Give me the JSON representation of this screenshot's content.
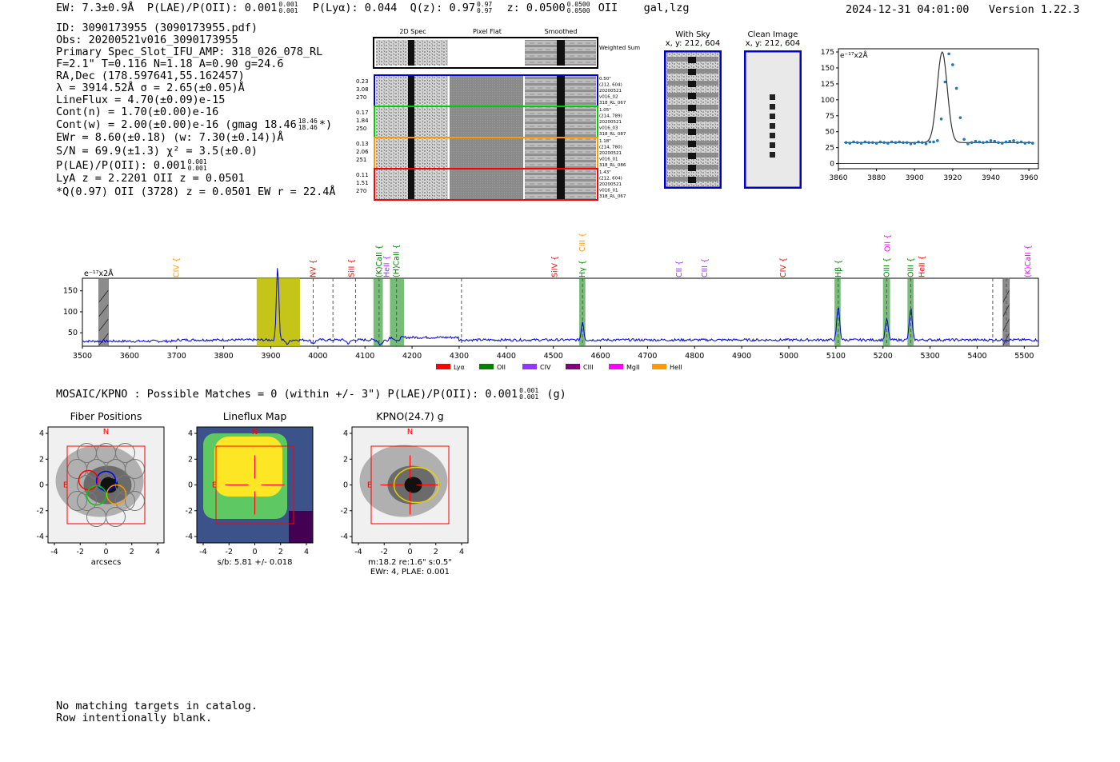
{
  "header": {
    "ew": "EW: 7.3±0.9Å",
    "plae_label": "P(LAE)/P(OII): 0.001",
    "plae_hi": "0.001",
    "plae_lo": "0.001",
    "plya": "P(Lyα): 0.044",
    "qz_label": "Q(z): 0.97",
    "qz_hi": "0.97",
    "qz_lo": "0.97",
    "z_label": "z: 0.0500",
    "z_hi": "0.0500",
    "z_lo": "0.0500",
    "z_line": "OII",
    "cls": "gal,lzg",
    "datetime": "2024-12-31 04:01:00",
    "version": "Version 1.22.3"
  },
  "info": {
    "lines": [
      "ID: 3090173955 (3090173955.pdf)",
      "Obs: 20200521v016_3090173955",
      "Primary Spec_Slot_IFU_AMP: 318_026_078_RL",
      "F=2.1\"  T=0.116  N=1.18  A=0.90  g=24.6",
      "RA,Dec (178.597641,55.162457)",
      "λ = 3914.52Å  σ = 2.65(±0.05)Å",
      "LineFlux = 4.70(±0.09)e-15",
      "Cont(n) = 1.70(±0.00)e-16"
    ],
    "contw": "Cont(w) = 2.00(±0.00)e-16 (gmag 18.46",
    "contw_hi": "18.46",
    "contw_lo": "18.46",
    "contw_end": "*)",
    "lines2": [
      "EWr = 8.60(±0.18) (w: 7.30(±0.14))Å",
      "S/N = 69.9(±1.3)  χ² = 3.5(±0.0)"
    ],
    "plae": "P(LAE)/P(OII): 0.001",
    "plae_hi": "0.001",
    "plae_lo": "0.001",
    "lines3": [
      "LyA z = 2.2201  OII z = 0.0501",
      "*Q(0.97) OII (3728) z = 0.0501  EW r = 22.4Å"
    ]
  },
  "cutouts": {
    "col_titles": [
      "2D Spec",
      "Pixel Flat",
      "Smoothed"
    ],
    "weighted_sum": "Weighted Sum",
    "rows": [
      {
        "left": [
          "0.23",
          "3.08",
          "270"
        ],
        "right": [
          "0.50\"",
          "(212, 604)",
          "20200521",
          "v016_02",
          "318_RL_067"
        ],
        "color": "#0000cc"
      },
      {
        "left": [
          "0.17",
          "1.84",
          "250"
        ],
        "right": [
          "1.05\"",
          "(214, 789)",
          "20200521",
          "v016_03",
          "318_RL_087"
        ],
        "color": "#00cc00"
      },
      {
        "left": [
          "0.13",
          "2.06",
          "251"
        ],
        "right": [
          "1.18\"",
          "(214, 780)",
          "20200521",
          "v016_01",
          "318_RL_086"
        ],
        "color": "#ff9900"
      },
      {
        "left": [
          "0.11",
          "1.51",
          "270"
        ],
        "right": [
          "1.43\"",
          "(212, 604)",
          "20200521",
          "v016_01",
          "318_RL_067"
        ],
        "color": "#ff0000"
      }
    ],
    "with_sky_title": "With Sky",
    "with_sky_xy": "x, y: 212, 604",
    "clean_title": "Clean Image",
    "clean_xy": "x, y: 212, 604"
  },
  "zoom_chart": {
    "type": "scatter",
    "units_label": "e⁻¹⁷x2Å",
    "xlim": [
      3860,
      3965
    ],
    "ylim": [
      -8,
      180
    ],
    "xticks": [
      "3860",
      "3880",
      "3900",
      "3920",
      "3940",
      "3960"
    ],
    "yticks": [
      "0",
      "25",
      "50",
      "75",
      "100",
      "125",
      "150",
      "175"
    ],
    "x": [
      3864,
      3866,
      3868,
      3870,
      3872,
      3874,
      3876,
      3878,
      3880,
      3882,
      3884,
      3886,
      3888,
      3890,
      3892,
      3894,
      3896,
      3898,
      3900,
      3902,
      3904,
      3906,
      3908,
      3910,
      3912,
      3914,
      3916,
      3918,
      3920,
      3922,
      3924,
      3926,
      3928,
      3930,
      3932,
      3934,
      3936,
      3938,
      3940,
      3942,
      3944,
      3946,
      3948,
      3950,
      3952,
      3954,
      3956,
      3958,
      3960,
      3962
    ],
    "y": [
      33,
      32,
      34,
      33,
      32,
      34,
      33,
      33,
      32,
      34,
      33,
      32,
      34,
      33,
      34,
      33,
      33,
      31,
      32,
      34,
      33,
      31,
      34,
      34,
      36,
      70,
      128,
      172,
      155,
      118,
      72,
      38,
      31,
      33,
      35,
      34,
      33,
      34,
      36,
      35,
      33,
      32,
      34,
      35,
      36,
      33,
      34,
      32,
      33,
      32
    ],
    "fit_peak": 175,
    "fit_center": 3914.5,
    "fit_sigma": 2.65,
    "fit_base": 33
  },
  "full_spectrum": {
    "type": "line",
    "units_label": "e⁻¹⁷x2Å",
    "xlim": [
      3500,
      5530
    ],
    "ylim": [
      18,
      180
    ],
    "xticks": [
      "3500",
      "3600",
      "3700",
      "3800",
      "3900",
      "4000",
      "4100",
      "4200",
      "4300",
      "4400",
      "4500",
      "4600",
      "4700",
      "4800",
      "4900",
      "5000",
      "5100",
      "5200",
      "5300",
      "5400",
      "5500"
    ],
    "yticks": [
      "50",
      "100",
      "150"
    ],
    "baseline": 33,
    "peaks": [
      {
        "x": 3914.5,
        "h": 175,
        "w": 2.6
      },
      {
        "x": 4562,
        "h": 45,
        "w": 2.5
      },
      {
        "x": 5105,
        "h": 78,
        "w": 3
      },
      {
        "x": 5208,
        "h": 50,
        "w": 3
      },
      {
        "x": 5259,
        "h": 75,
        "w": 3
      }
    ],
    "dips": [
      {
        "x": 3935,
        "h": -9
      },
      {
        "x": 3990,
        "h": -8
      },
      {
        "x": 4065,
        "h": -8
      },
      {
        "x": 4133,
        "h": -11
      },
      {
        "x": 4168,
        "h": -10
      }
    ],
    "yellow_band": [
      3870,
      3962
    ],
    "gray_hatched": [
      [
        3535,
        3555
      ],
      [
        5455,
        5468
      ]
    ],
    "green_bands": [
      [
        4118,
        4138
      ],
      [
        4153,
        4183
      ],
      [
        4555,
        4568
      ],
      [
        5097,
        5110
      ],
      [
        5200,
        5215
      ],
      [
        5252,
        5265
      ]
    ],
    "dashed_lines": [
      3990,
      4032,
      4080,
      4130,
      4167,
      4305,
      4562,
      5105,
      5208,
      5259,
      5433,
      5462
    ],
    "emission_labels": [
      {
        "text": "CIV",
        "x": 3700,
        "color": "#ff9900"
      },
      {
        "text": "NV",
        "x": 3990,
        "color": "#ff0000"
      },
      {
        "text": "SiII",
        "x": 4072,
        "color": "#ff0000"
      },
      {
        "text": "(K)CaII",
        "x": 4130,
        "color": "#008000"
      },
      {
        "text": "HeII",
        "x": 4146,
        "color": "#9933ff"
      },
      {
        "text": "(H)CaII",
        "x": 4167,
        "color": "#008000"
      },
      {
        "text": "SiIV",
        "x": 4503,
        "color": "#ff0000"
      },
      {
        "text": "CIII",
        "x": 4562,
        "color": "#ff9900",
        "high": true
      },
      {
        "text": "Hγ",
        "x": 4562,
        "color": "#008000"
      },
      {
        "text": "CII",
        "x": 4767,
        "color": "#9933ff"
      },
      {
        "text": "CIII",
        "x": 4822,
        "color": "#9933ff"
      },
      {
        "text": "CIV",
        "x": 4988,
        "color": "#ff0000"
      },
      {
        "text": "Hβ",
        "x": 5105,
        "color": "#008000"
      },
      {
        "text": "OII",
        "x": 5210,
        "color": "#ff00ff",
        "high": true
      },
      {
        "text": "OIII",
        "x": 5208,
        "color": "#008000"
      },
      {
        "text": "OIII",
        "x": 5259,
        "color": "#008000"
      },
      {
        "text": "HeII",
        "x": 5283,
        "color": "#ff0000"
      },
      {
        "text": "(K)CaII",
        "x": 5508,
        "color": "#ff00ff"
      }
    ],
    "legend": [
      {
        "label": "Lyα",
        "color": "#ff0000"
      },
      {
        "label": "OII",
        "color": "#008000"
      },
      {
        "label": "CIV",
        "color": "#9933ff"
      },
      {
        "label": "CIII",
        "color": "#800080"
      },
      {
        "label": "MgII",
        "color": "#ff00ff"
      },
      {
        "label": "HeII",
        "color": "#ff9900"
      }
    ]
  },
  "mosaic": {
    "caption": "MOSAIC/KPNO : Possible Matches = 0 (within +/- 3\")  P(LAE)/P(OII): 0.001",
    "caption_hi": "0.001",
    "caption_lo": "0.001",
    "caption_end": "(g)",
    "panels": [
      {
        "title": "Fiber Positions",
        "below1": "arcsecs",
        "below2": ""
      },
      {
        "title": "Lineflux Map",
        "below1": "s/b: 5.81 +/- 0.018",
        "below2": ""
      },
      {
        "title": "KPNO(24.7) g",
        "below1": "m:18.2  re:1.6\"  s:0.5\"",
        "below2": "EWr: 4, PLAE: 0.001"
      }
    ],
    "axis_ticks": [
      "-4",
      "-2",
      "0",
      "2",
      "4"
    ],
    "north": "N",
    "east": "E"
  },
  "footer": {
    "line1": "No matching targets in catalog.",
    "line2": "Row intentionally blank."
  }
}
